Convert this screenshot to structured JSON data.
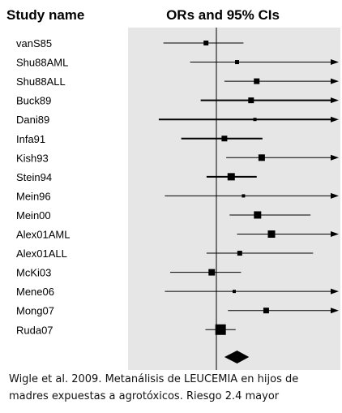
{
  "chart_data": {
    "type": "forest",
    "column_headers": {
      "study": "Study name",
      "effect": "ORs and 95% CIs"
    },
    "null_value": 1,
    "scale": "log",
    "studies": [
      {
        "name": "vanS85",
        "or": 0.79,
        "lower": 0.3,
        "upper": 1.85
      },
      {
        "name": "Shu88AML",
        "or": 1.6,
        "lower": 0.55,
        "upper": 10,
        "upper_arrow": true
      },
      {
        "name": "Shu88ALL",
        "or": 2.5,
        "lower": 1.2,
        "upper": 10,
        "upper_arrow": true
      },
      {
        "name": "Buck89",
        "or": 2.2,
        "lower": 0.7,
        "upper": 10,
        "upper_arrow": true
      },
      {
        "name": "Dani89",
        "or": 2.4,
        "lower": 0.27,
        "upper": 10,
        "upper_arrow": true
      },
      {
        "name": "Infa91",
        "or": 1.2,
        "lower": 0.45,
        "upper": 2.85
      },
      {
        "name": "Kish93",
        "or": 2.8,
        "lower": 1.25,
        "upper": 10,
        "upper_arrow": true
      },
      {
        "name": "Stein94",
        "or": 1.4,
        "lower": 0.8,
        "upper": 2.5
      },
      {
        "name": "Mein96",
        "or": 1.85,
        "lower": 0.31,
        "upper": 10,
        "upper_arrow": true
      },
      {
        "name": "Mein00",
        "or": 2.55,
        "lower": 1.35,
        "upper": 8.5
      },
      {
        "name": "Alex01AML",
        "or": 3.5,
        "lower": 1.6,
        "upper": 10,
        "upper_arrow": true
      },
      {
        "name": "Alex01ALL",
        "or": 1.7,
        "lower": 0.8,
        "upper": 9.0
      },
      {
        "name": "McKi03",
        "or": 0.9,
        "lower": 0.35,
        "upper": 1.75
      },
      {
        "name": "Mene06",
        "or": 1.5,
        "lower": 0.31,
        "upper": 10,
        "upper_arrow": true
      },
      {
        "name": "Mong07",
        "or": 3.1,
        "lower": 1.3,
        "upper": 10,
        "upper_arrow": true
      },
      {
        "name": "Ruda07",
        "or": 1.1,
        "lower": 0.78,
        "upper": 1.55
      }
    ],
    "pooled": {
      "or": 1.6,
      "lower": 1.2,
      "upper": 2.1
    },
    "xlim": [
      0.25,
      11
    ],
    "grid": false
  },
  "caption": {
    "line1": "Wigle et al. 2009. Metanálisis de LEUCEMIA en hijos de",
    "line2": "madres expuestas a agrotóxicos. Riesgo 2.4 mayor"
  },
  "colors": {
    "plot_background": "#e6e6e6",
    "ink": "#000000"
  }
}
